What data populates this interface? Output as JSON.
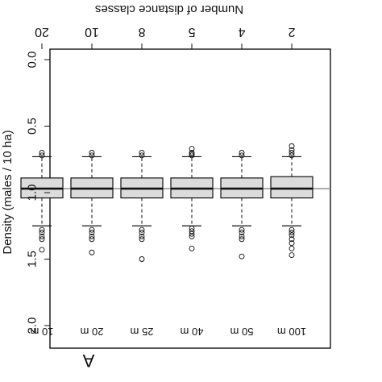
{
  "chart_data": {
    "type": "box",
    "orientation": "rotated 180 degrees (upside-down)",
    "x_axis_label": "Number of distance classes",
    "categories": [
      "2",
      "4",
      "5",
      "8",
      "10",
      "20"
    ],
    "distance_labels": [
      "100 m",
      "50 m",
      "40 m",
      "25 m",
      "20 m",
      "10 m"
    ],
    "y_axis_label": "Density (males / 10 ha)",
    "y_ticks": [
      "0.0",
      "0.5",
      "1.0",
      "1.5",
      "2.0"
    ],
    "ylim": [
      0.0,
      2.0
    ],
    "panel_label": "A",
    "reference_line": 0.97,
    "boxes": [
      {
        "category": "2",
        "median": 0.97,
        "q1": 0.88,
        "q3": 1.04,
        "whisker_low": 0.73,
        "whisker_high": 1.25,
        "outliers_low": [
          0.65,
          0.68,
          0.7,
          0.72
        ],
        "outliers_high": [
          1.28,
          1.3,
          1.32,
          1.35,
          1.38,
          1.42,
          1.47
        ]
      },
      {
        "category": "4",
        "median": 0.97,
        "q1": 0.89,
        "q3": 1.04,
        "whisker_low": 0.73,
        "whisker_high": 1.25,
        "outliers_low": [
          0.7,
          0.72
        ],
        "outliers_high": [
          1.28,
          1.3,
          1.33,
          1.35,
          1.48
        ]
      },
      {
        "category": "5",
        "median": 0.97,
        "q1": 0.89,
        "q3": 1.04,
        "whisker_low": 0.73,
        "whisker_high": 1.25,
        "outliers_low": [
          0.67,
          0.7,
          0.71,
          0.72
        ],
        "outliers_high": [
          1.27,
          1.29,
          1.31,
          1.33,
          1.42
        ]
      },
      {
        "category": "8",
        "median": 0.97,
        "q1": 0.89,
        "q3": 1.04,
        "whisker_low": 0.73,
        "whisker_high": 1.25,
        "outliers_low": [
          0.7,
          0.72
        ],
        "outliers_high": [
          1.28,
          1.3,
          1.33,
          1.35,
          1.5
        ]
      },
      {
        "category": "10",
        "median": 0.97,
        "q1": 0.89,
        "q3": 1.04,
        "whisker_low": 0.73,
        "whisker_high": 1.25,
        "outliers_low": [
          0.7,
          0.72
        ],
        "outliers_high": [
          1.28,
          1.3,
          1.33,
          1.35,
          1.45
        ]
      },
      {
        "category": "20",
        "median": 0.97,
        "q1": 0.89,
        "q3": 1.04,
        "whisker_low": 0.73,
        "whisker_high": 1.25,
        "outliers_low": [
          0.7,
          0.72
        ],
        "outliers_high": [
          1.28,
          1.3,
          1.33,
          1.35,
          1.43
        ]
      }
    ],
    "colors": {
      "box_fill": "#dcdcdc",
      "stroke": "#111111",
      "reference_line": "#888888"
    },
    "grid": false,
    "legend": "none"
  }
}
